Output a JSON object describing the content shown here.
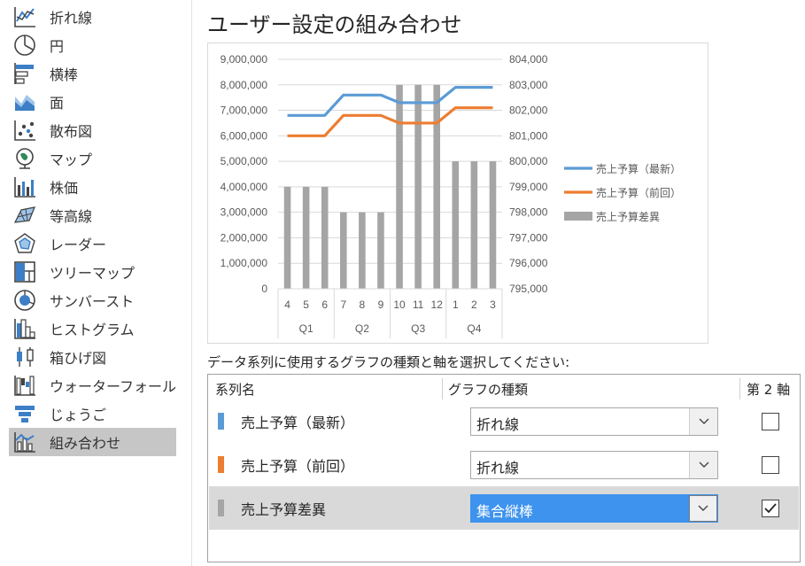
{
  "sidebar": {
    "items": [
      {
        "label": "折れ線",
        "icon": "line-chart-icon"
      },
      {
        "label": "円",
        "icon": "pie-chart-icon"
      },
      {
        "label": "横棒",
        "icon": "bar-chart-icon"
      },
      {
        "label": "面",
        "icon": "area-chart-icon"
      },
      {
        "label": "散布図",
        "icon": "scatter-chart-icon"
      },
      {
        "label": "マップ",
        "icon": "map-chart-icon"
      },
      {
        "label": "株価",
        "icon": "stock-chart-icon"
      },
      {
        "label": "等高線",
        "icon": "surface-chart-icon"
      },
      {
        "label": "レーダー",
        "icon": "radar-chart-icon"
      },
      {
        "label": "ツリーマップ",
        "icon": "treemap-chart-icon"
      },
      {
        "label": "サンバースト",
        "icon": "sunburst-chart-icon"
      },
      {
        "label": "ヒストグラム",
        "icon": "histogram-chart-icon"
      },
      {
        "label": "箱ひげ図",
        "icon": "box-whisker-chart-icon"
      },
      {
        "label": "ウォーターフォール",
        "icon": "waterfall-chart-icon"
      },
      {
        "label": "じょうご",
        "icon": "funnel-chart-icon"
      },
      {
        "label": "組み合わせ",
        "icon": "combo-chart-icon"
      }
    ],
    "selected_index": 15
  },
  "main": {
    "title": "ユーザー設定の組み合わせ",
    "prompt": "データ系列に使用するグラフの種類と軸を選択してください:"
  },
  "series_table": {
    "headers": {
      "name": "系列名",
      "type": "グラフの種類",
      "secondary": "第 2 軸"
    },
    "rows": [
      {
        "name": "売上予算（最新）",
        "type": "折れ線",
        "secondary_axis": false,
        "color": "#5b9bd5"
      },
      {
        "name": "売上予算（前回）",
        "type": "折れ線",
        "secondary_axis": false,
        "color": "#ed7d31"
      },
      {
        "name": "売上予算差異",
        "type": "集合縦棒",
        "secondary_axis": true,
        "color": "#a5a5a5"
      }
    ],
    "selected_row": 2
  },
  "chart_data": {
    "type": "combo",
    "categories": [
      "4",
      "5",
      "6",
      "7",
      "8",
      "9",
      "10",
      "11",
      "12",
      "1",
      "2",
      "3"
    ],
    "category_groups": [
      {
        "label": "Q1",
        "span": 3
      },
      {
        "label": "Q2",
        "span": 3
      },
      {
        "label": "Q3",
        "span": 3
      },
      {
        "label": "Q4",
        "span": 3
      }
    ],
    "series": [
      {
        "name": "売上予算（最新）",
        "type": "line",
        "axis": "primary",
        "color": "#5b9bd5",
        "values": [
          6800000,
          6800000,
          6800000,
          7600000,
          7600000,
          7600000,
          7300000,
          7300000,
          7300000,
          7900000,
          7900000,
          7900000
        ]
      },
      {
        "name": "売上予算（前回）",
        "type": "line",
        "axis": "primary",
        "color": "#ed7d31",
        "values": [
          6000000,
          6000000,
          6000000,
          6800000,
          6800000,
          6800000,
          6500000,
          6500000,
          6500000,
          7100000,
          7100000,
          7100000
        ]
      },
      {
        "name": "売上予算差異",
        "type": "bar",
        "axis": "secondary",
        "color": "#a5a5a5",
        "values": [
          799000,
          799000,
          799000,
          798000,
          798000,
          798000,
          803000,
          803000,
          803000,
          800000,
          800000,
          800000
        ]
      }
    ],
    "y_primary": {
      "min": 0,
      "max": 9000000,
      "step": 1000000,
      "tick_labels": [
        "0",
        "1,000,000",
        "2,000,000",
        "3,000,000",
        "4,000,000",
        "5,000,000",
        "6,000,000",
        "7,000,000",
        "8,000,000",
        "9,000,000"
      ]
    },
    "y_secondary": {
      "min": 795000,
      "max": 804000,
      "step": 1000,
      "tick_labels": [
        "795,000",
        "796,000",
        "797,000",
        "798,000",
        "799,000",
        "800,000",
        "801,000",
        "802,000",
        "803,000",
        "804,000"
      ]
    },
    "grid": true,
    "legend_position": "right"
  }
}
